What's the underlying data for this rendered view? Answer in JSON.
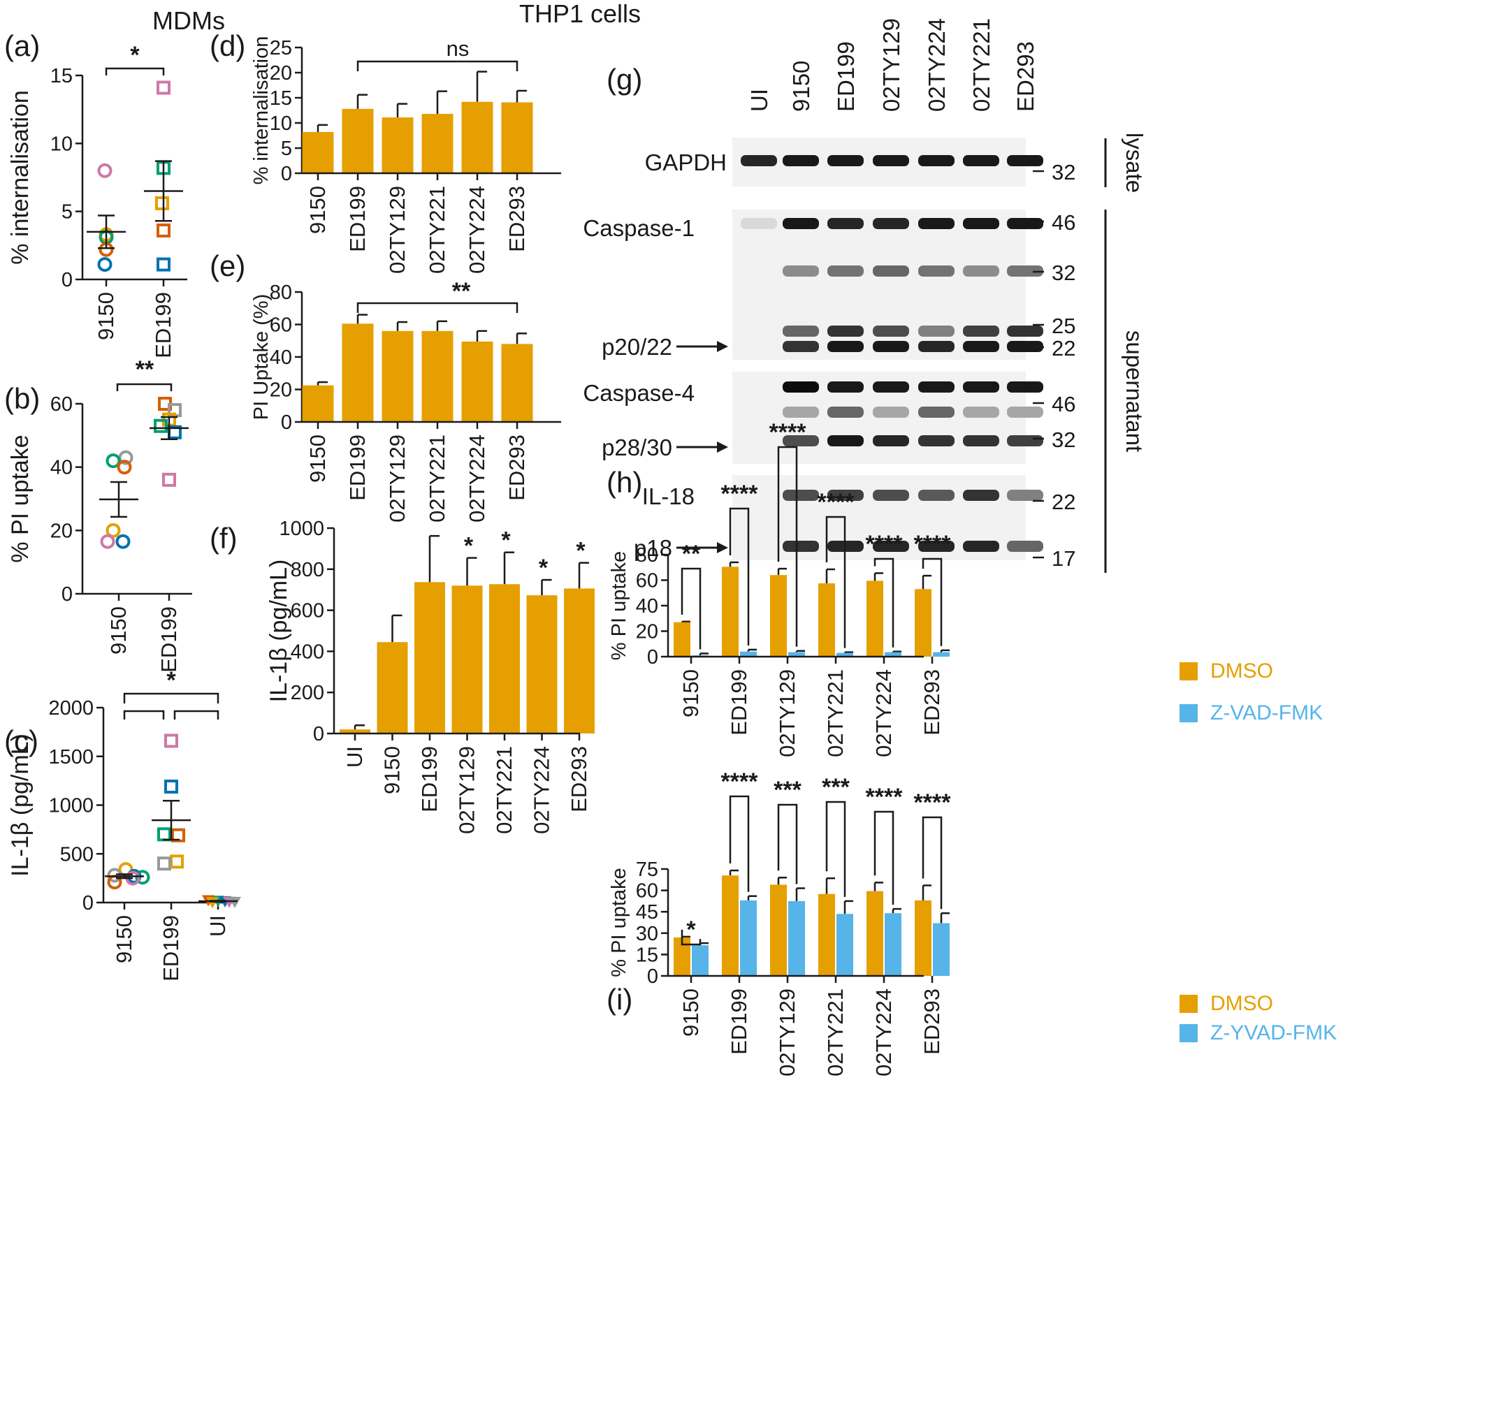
{
  "figure": {
    "group_titles": [
      "MDMs",
      "THP1 cells"
    ],
    "colors": {
      "orange": "#E69F00",
      "blue": "#56B4E9",
      "scatter": [
        "#cc79a7",
        "#e69f00",
        "#009e73",
        "#d55e00",
        "#0072b2",
        "#999999"
      ]
    }
  },
  "chart_data": [
    {
      "panel": "(a)",
      "type": "scatter",
      "ylabel": "% internalisation",
      "categories": [
        "9150",
        "ED199"
      ],
      "ylim": [
        0,
        15
      ],
      "yticks": [
        0,
        5,
        10,
        15
      ],
      "points": [
        {
          "category": "9150",
          "values": [
            8.0,
            3.3,
            3.1,
            2.2,
            1.1
          ],
          "colors": [
            "#cc79a7",
            "#e69f00",
            "#009e73",
            "#d55e00",
            "#0072b2"
          ],
          "marker": "circle"
        },
        {
          "category": "ED199",
          "values": [
            14.1,
            8.2,
            5.6,
            3.6,
            1.1
          ],
          "colors": [
            "#cc79a7",
            "#009e73",
            "#e69f00",
            "#d55e00",
            "#0072b2"
          ],
          "marker": "square"
        }
      ],
      "mean": [
        3.5,
        6.5
      ],
      "sem": [
        1.2,
        2.2
      ],
      "significance": [
        {
          "from": "9150",
          "to": "ED199",
          "label": "*"
        }
      ]
    },
    {
      "panel": "(b)",
      "type": "scatter",
      "ylabel": "% PI uptake",
      "categories": [
        "9150",
        "ED199"
      ],
      "ylim": [
        0,
        60
      ],
      "yticks": [
        0,
        20,
        40,
        60
      ],
      "points": [
        {
          "category": "9150",
          "values": [
            43,
            42,
            40,
            20,
            16.5,
            16.5
          ],
          "colors": [
            "#999999",
            "#009e73",
            "#d55e00",
            "#e69f00",
            "#cc79a7",
            "#0072b2"
          ],
          "marker": "circle"
        },
        {
          "category": "ED199",
          "values": [
            60,
            58,
            55,
            53,
            51,
            36
          ],
          "colors": [
            "#d55e00",
            "#999999",
            "#e69f00",
            "#009e73",
            "#0072b2",
            "#cc79a7"
          ],
          "marker": "square"
        }
      ],
      "mean": [
        29.8,
        52.3
      ],
      "sem": [
        5.5,
        3.5
      ],
      "significance": [
        {
          "from": "9150",
          "to": "ED199",
          "label": "**"
        }
      ]
    },
    {
      "panel": "(c)",
      "type": "scatter",
      "ylabel": "IL-1β (pg/mL)",
      "categories": [
        "9150",
        "ED199",
        "UI"
      ],
      "ylim": [
        0,
        2000
      ],
      "yticks": [
        0,
        500,
        1000,
        1500,
        2000
      ],
      "points": [
        {
          "category": "9150",
          "values": [
            340,
            280,
            270,
            260,
            250,
            210
          ],
          "colors": [
            "#e69f00",
            "#999999",
            "#0072b2",
            "#009e73",
            "#cc79a7",
            "#d55e00"
          ],
          "marker": "circle"
        },
        {
          "category": "ED199",
          "values": [
            1660,
            1190,
            700,
            690,
            420,
            400
          ],
          "colors": [
            "#cc79a7",
            "#0072b2",
            "#009e73",
            "#d55e00",
            "#e69f00",
            "#999999"
          ],
          "marker": "square"
        },
        {
          "category": "UI",
          "values": [
            25,
            20,
            15,
            10,
            8,
            5
          ],
          "colors": [
            "#d55e00",
            "#009e73",
            "#0072b2",
            "#cc79a7",
            "#999999",
            "#e69f00"
          ],
          "marker": "triangle"
        }
      ],
      "mean": [
        270,
        845,
        14
      ],
      "sem": [
        20,
        200,
        4
      ],
      "significance": [
        {
          "from": "9150",
          "to": "UI",
          "label": "*"
        },
        {
          "from": "9150",
          "to": "ED199",
          "label": ""
        },
        {
          "from": "ED199",
          "to": "UI",
          "label": ""
        }
      ]
    },
    {
      "panel": "(d)",
      "type": "bar",
      "ylabel": "% internalisation",
      "categories": [
        "9150",
        "ED199",
        "02TY129",
        "02TY221",
        "02TY224",
        "ED293"
      ],
      "values": [
        8.2,
        12.8,
        11.1,
        11.8,
        14.2,
        14.1
      ],
      "errors": [
        1.4,
        2.8,
        2.7,
        4.5,
        6.0,
        2.3
      ],
      "ylim": [
        0,
        25
      ],
      "yticks": [
        0,
        5,
        10,
        15,
        20,
        25
      ],
      "significance": [
        {
          "from": "ED199",
          "to": "ED293",
          "label": "ns"
        }
      ]
    },
    {
      "panel": "(e)",
      "type": "bar",
      "ylabel": "PI Uptake (%)",
      "categories": [
        "9150",
        "ED199",
        "02TY129",
        "02TY221",
        "02TY224",
        "ED293"
      ],
      "values": [
        22.5,
        60.5,
        56,
        56,
        49.5,
        48
      ],
      "errors": [
        2,
        5.5,
        5.5,
        6,
        6.5,
        6.5
      ],
      "ylim": [
        0,
        80
      ],
      "yticks": [
        0,
        20,
        40,
        60,
        80
      ],
      "significance": [
        {
          "from": "ED199",
          "to": "ED293",
          "label": "**"
        }
      ]
    },
    {
      "panel": "(f)",
      "type": "bar",
      "ylabel": "IL-1β (pg/mL)",
      "categories": [
        "UI",
        "9150",
        "ED199",
        "02TY129",
        "02TY221",
        "02TY224",
        "ED293"
      ],
      "values": [
        20,
        445,
        737,
        720,
        727,
        673,
        706
      ],
      "errors": [
        20,
        130,
        225,
        135,
        155,
        75,
        125
      ],
      "ylim": [
        0,
        1000
      ],
      "yticks": [
        0,
        200,
        400,
        600,
        800,
        1000
      ],
      "stars": [
        "",
        "",
        "",
        "*",
        "*",
        "*",
        "*"
      ]
    },
    {
      "panel": "(h)",
      "type": "bar",
      "ylabel": "% PI uptake",
      "categories": [
        "9150",
        "ED199",
        "02TY129",
        "02TY221",
        "02TY224",
        "ED293"
      ],
      "series": [
        {
          "name": "DMSO",
          "values": [
            27,
            70.5,
            64,
            57.5,
            59.5,
            53
          ],
          "errors": [
            0.5,
            3.5,
            5,
            11,
            6,
            10.5
          ]
        },
        {
          "name": "Z-VAD-FMK",
          "values": [
            1,
            4,
            3.5,
            3,
            3.5,
            3.5
          ],
          "errors": [
            1.5,
            1.5,
            1,
            0.5,
            0.5,
            1.5
          ]
        }
      ],
      "ylim": [
        0,
        80
      ],
      "yticks": [
        0,
        20,
        40,
        60,
        80
      ],
      "significance": [
        "**",
        "****",
        "****",
        "****",
        "****",
        "****"
      ],
      "legend_position": "top-right"
    },
    {
      "panel": "(i)",
      "type": "bar",
      "ylabel": "% PI uptake",
      "categories": [
        "9150",
        "ED199",
        "02TY129",
        "02TY221",
        "02TY224",
        "ED293"
      ],
      "series": [
        {
          "name": "DMSO",
          "values": [
            27,
            70.5,
            64,
            57.5,
            59.5,
            53
          ],
          "errors": [
            0.5,
            3.5,
            5,
            11,
            6,
            10.5
          ]
        },
        {
          "name": "Z-YVAD-FMK",
          "values": [
            21.5,
            53,
            52.5,
            43.5,
            44,
            37
          ],
          "errors": [
            1.5,
            3,
            9,
            9,
            3,
            7
          ]
        }
      ],
      "ylim": [
        0,
        75
      ],
      "yticks": [
        0,
        15,
        30,
        45,
        60,
        75
      ],
      "significance": [
        "*",
        "****",
        "***",
        "***",
        "****",
        "****"
      ],
      "legend_position": "top-right"
    }
  ],
  "blot": {
    "panel": "(g)",
    "lanes": [
      "UI",
      "9150",
      "ED199",
      "02TY129",
      "02TY224",
      "02TY221",
      "ED293"
    ],
    "rows": [
      {
        "label": "GAPDH",
        "arrow_label": "",
        "markers": [
          "32"
        ],
        "bands": [
          [
            0.85,
            0.9,
            0.9,
            0.9,
            0.9,
            0.9,
            0.9
          ]
        ]
      },
      {
        "label": "Caspase-1",
        "arrow_label": "p20/22",
        "markers": [
          "46",
          "32",
          "25",
          "22"
        ],
        "bands": [
          [
            0.15,
            0.9,
            0.85,
            0.85,
            0.9,
            0.9,
            0.9
          ],
          [
            0,
            0.45,
            0.55,
            0.6,
            0.55,
            0.45,
            0.55
          ],
          [
            0,
            0.6,
            0.8,
            0.7,
            0.5,
            0.75,
            0.8
          ],
          [
            0,
            0.8,
            0.9,
            0.9,
            0.85,
            0.9,
            0.9
          ]
        ]
      },
      {
        "label": "Caspase-4",
        "arrow_label": "p28/30",
        "markers": [
          "46",
          "32"
        ],
        "bands": [
          [
            0.05,
            0.95,
            0.9,
            0.9,
            0.9,
            0.9,
            0.9
          ],
          [
            0,
            0.35,
            0.6,
            0.35,
            0.6,
            0.35,
            0.35
          ],
          [
            0,
            0.7,
            0.9,
            0.85,
            0.8,
            0.8,
            0.75
          ]
        ]
      },
      {
        "label": "IL-18",
        "arrow_label": "p18",
        "markers": [
          "22",
          "17"
        ],
        "bands": [
          [
            0,
            0.7,
            0.75,
            0.7,
            0.65,
            0.8,
            0.5
          ],
          [
            0,
            0.8,
            0.85,
            0.85,
            0.85,
            0.85,
            0.6
          ]
        ]
      }
    ],
    "side_labels": [
      "lysate",
      "supernatant"
    ]
  }
}
